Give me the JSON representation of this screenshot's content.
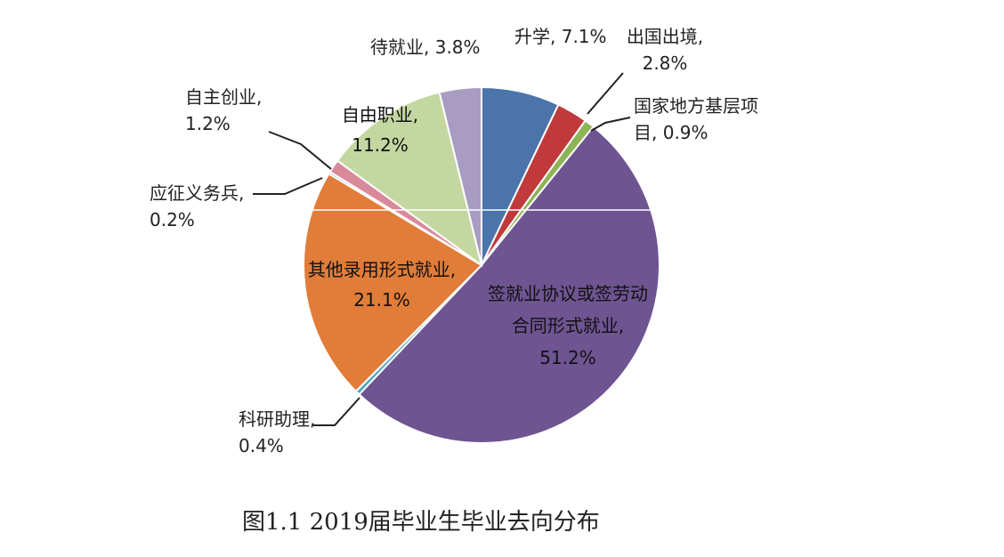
{
  "chart_data": {
    "type": "pie",
    "title": "图1.1 2019届毕业生毕业去向分布",
    "start": "top",
    "direction": "clockwise",
    "slices": [
      {
        "label": "升学",
        "value": 7.1,
        "text": "升学, 7.1%",
        "color": "#4a74aa"
      },
      {
        "label": "出国出境",
        "value": 2.8,
        "text": "出国出境, 2.8%",
        "color": "#c03a3c"
      },
      {
        "label": "国家地方基层项目",
        "value": 0.9,
        "text": "国家地方基层项目, 0.9%",
        "color": "#8db455"
      },
      {
        "label": "签就业协议或签劳动合同形式就业",
        "value": 51.2,
        "text": "签就业协议或签劳动合同形式就业, 51.2%",
        "color": "#6e5491"
      },
      {
        "label": "科研助理",
        "value": 0.4,
        "text": "科研助理, 0.4%",
        "color": "#4aa8c0"
      },
      {
        "label": "其他录用形式就业",
        "value": 21.1,
        "text": "其他录用形式就业, 21.1%",
        "color": "#e17c39"
      },
      {
        "label": "应征义务兵",
        "value": 0.2,
        "text": "应征义务兵, 0.2%",
        "color": "#5a7db5"
      },
      {
        "label": "自主创业",
        "value": 1.2,
        "text": "自主创业, 1.2%",
        "color": "#d8899a"
      },
      {
        "label": "自由职业",
        "value": 11.2,
        "text": "自由职业, 11.2%",
        "color": "#c4d7a1"
      },
      {
        "label": "待就业",
        "value": 3.8,
        "text": "待就业, 3.8%",
        "color": "#a99cc2"
      }
    ]
  }
}
